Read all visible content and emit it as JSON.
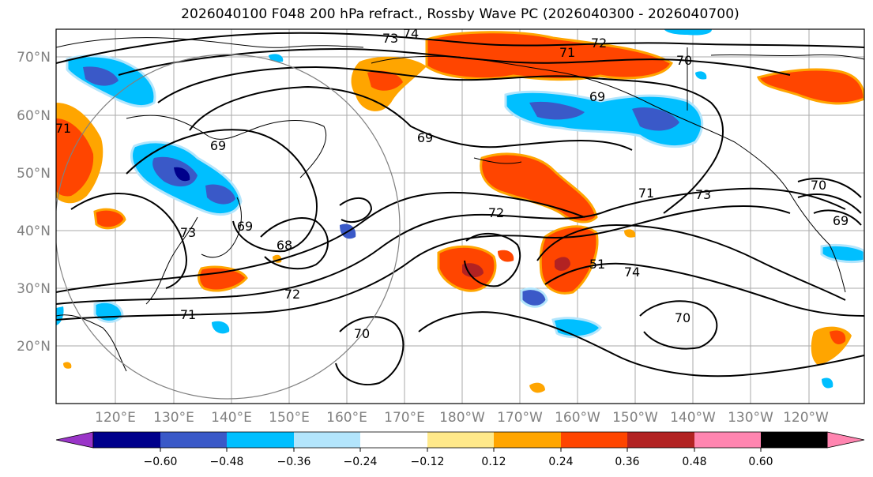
{
  "title": "2026040100 F048 200 hPa refract., Rossby Wave PC (2026040300 - 2026040700)",
  "lat_labels": [
    "70°N",
    "60°N",
    "50°N",
    "40°N",
    "30°N",
    "20°N"
  ],
  "lon_labels": [
    "120°E",
    "130°E",
    "140°E",
    "150°E",
    "160°E",
    "170°E",
    "180°W",
    "170°W",
    "160°W",
    "150°W",
    "140°W",
    "130°W",
    "120°W"
  ],
  "contour_labels": [
    "74",
    "73",
    "72",
    "71",
    "70",
    "69",
    "69",
    "71",
    "73",
    "72",
    "69",
    "68",
    "73",
    "69",
    "72",
    "71",
    "70",
    "70",
    "74",
    "51",
    "71",
    "70",
    "69"
  ],
  "colorbar": {
    "ticks": [
      "−0.60",
      "−0.48",
      "−0.36",
      "−0.24",
      "−0.12",
      "0.12",
      "0.24",
      "0.36",
      "0.48",
      "0.60"
    ],
    "colors": [
      "#9a35c8",
      "#00008b",
      "#3a59c8",
      "#00bfff",
      "#b3e5fc",
      "#ffffff",
      "#ffe98a",
      "#ffa500",
      "#ff4500",
      "#b22222",
      "#ff85b0"
    ]
  }
}
